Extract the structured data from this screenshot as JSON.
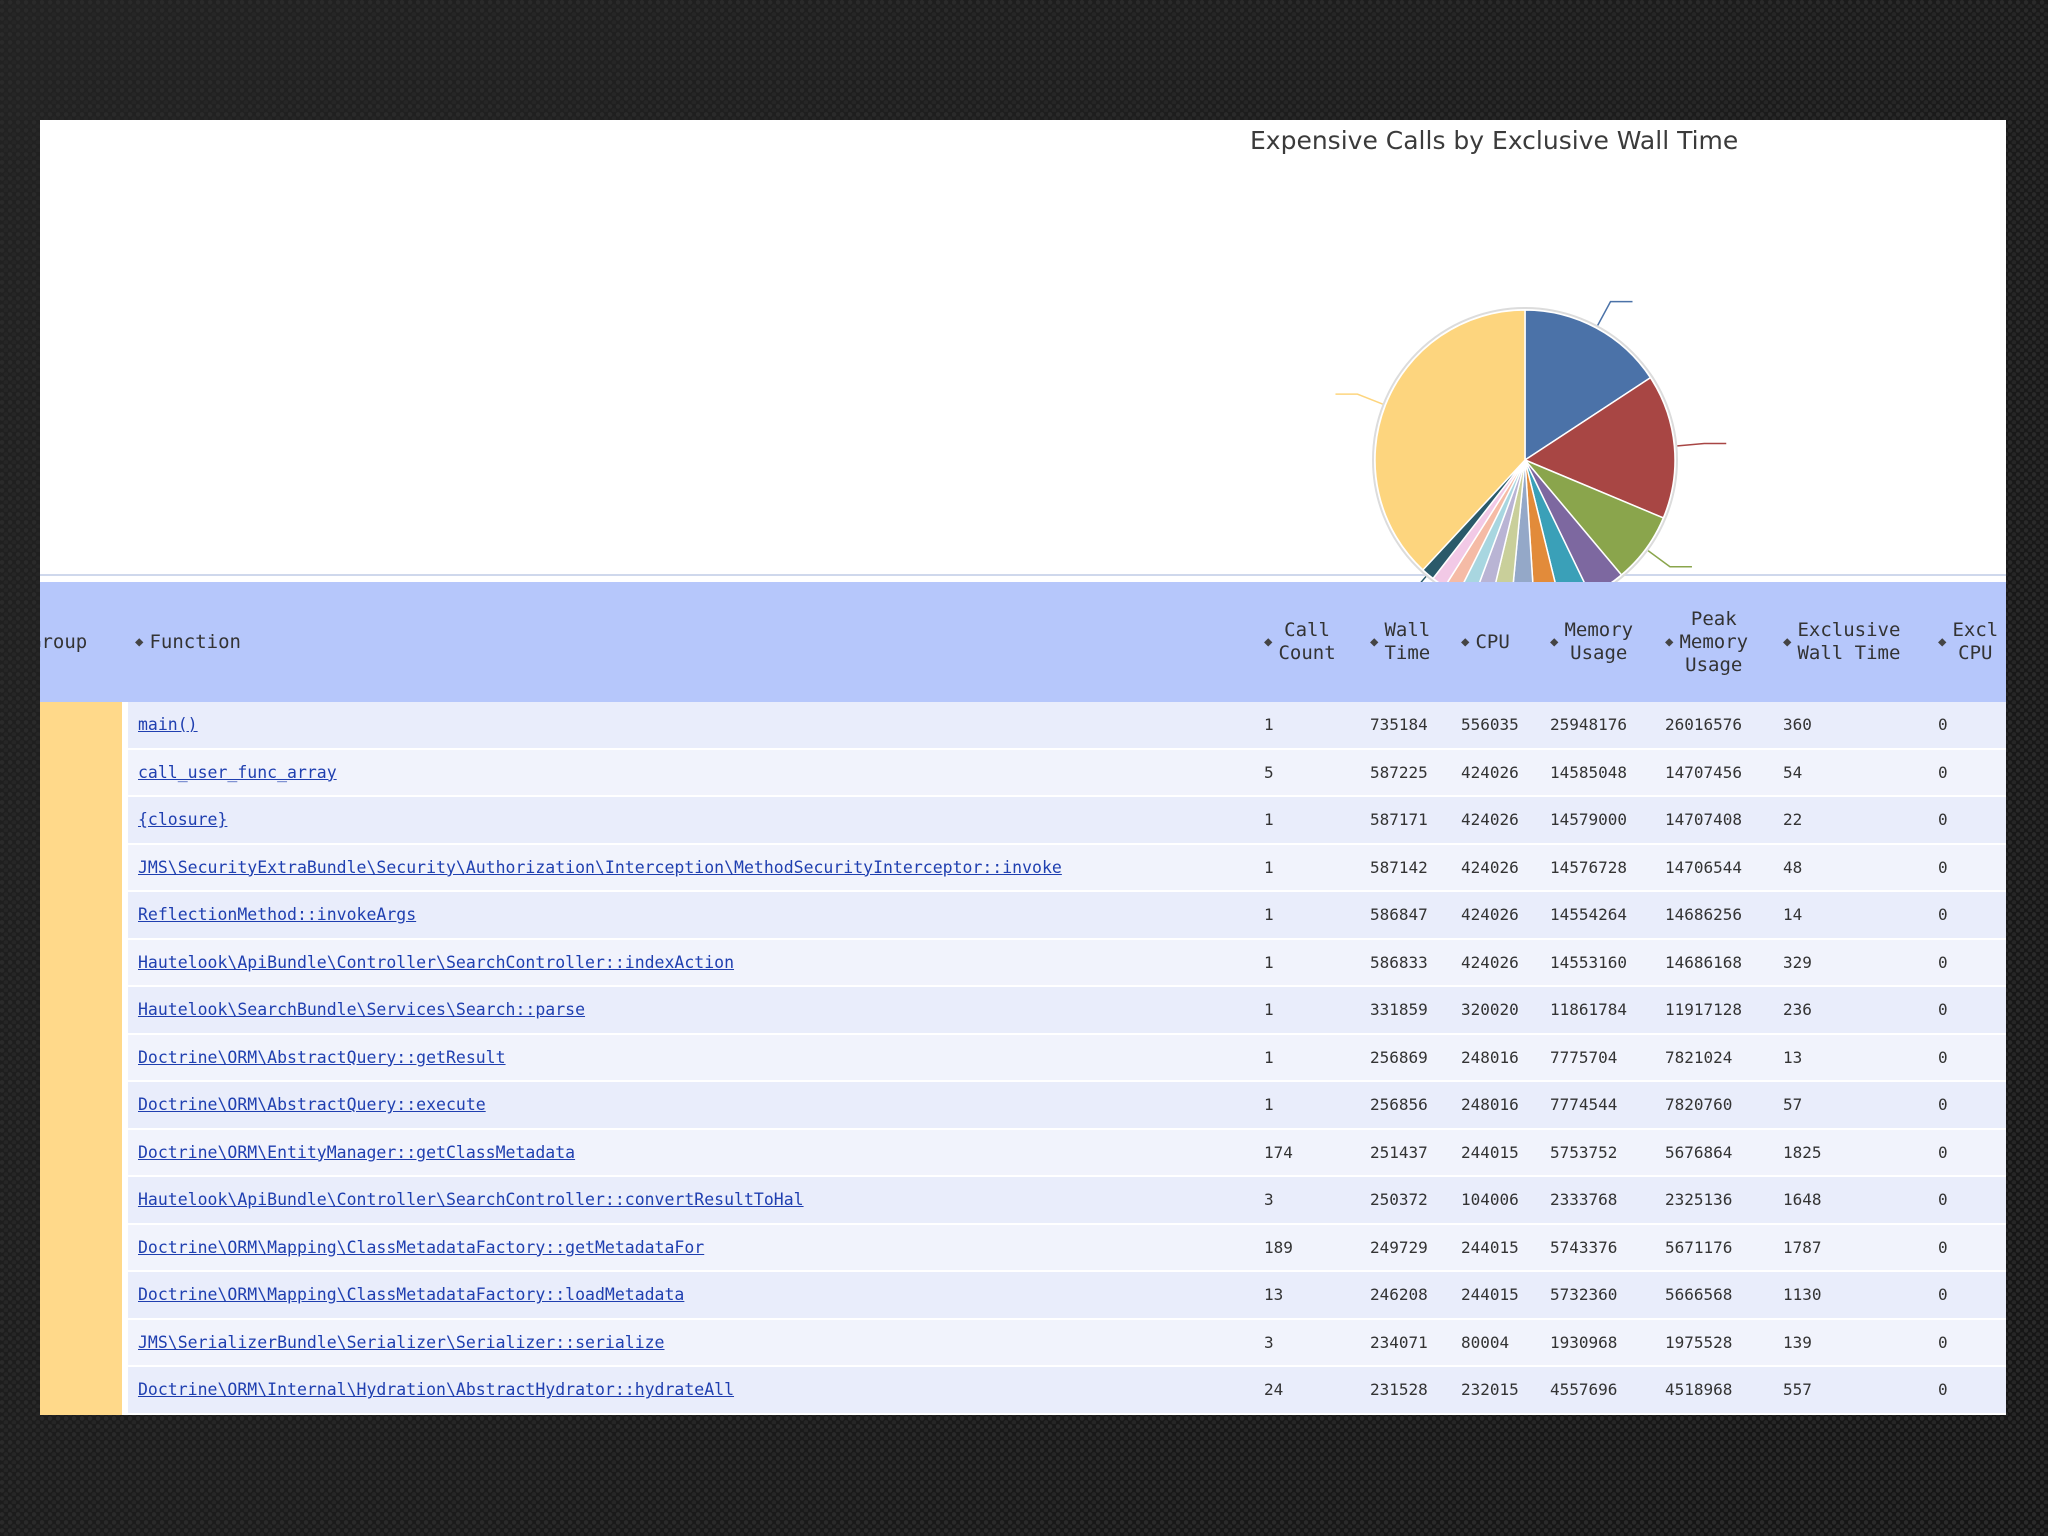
{
  "chart": {
    "title": "Expensive Calls by Exclusive Wall Time",
    "slices": [
      {
        "value": 15.6,
        "color": "#4b72a8"
      },
      {
        "value": 15.4,
        "color": "#a84644"
      },
      {
        "value": 7.5,
        "color": "#8aa54c"
      },
      {
        "value": 3.9,
        "color": "#7d68a0"
      },
      {
        "value": 3.3,
        "color": "#3aa0b8"
      },
      {
        "value": 2.8,
        "color": "#e28b3a"
      },
      {
        "value": 2.5,
        "color": "#94a8c8"
      },
      {
        "value": 2.2,
        "color": "#c9cf9a"
      },
      {
        "value": 1.9,
        "color": "#b9b4d4"
      },
      {
        "value": 1.7,
        "color": "#a8d6e0"
      },
      {
        "value": 1.6,
        "color": "#f5bba6"
      },
      {
        "value": 1.5,
        "color": "#f2c9e6"
      },
      {
        "value": 1.4,
        "color": "#2a5a6a"
      },
      {
        "value": 37.7,
        "color": "#fdd57e"
      }
    ]
  },
  "table": {
    "headers": {
      "group": "Group",
      "function": "Function",
      "call_count": "Call\nCount",
      "wall_time": "Wall\nTime",
      "cpu": "CPU",
      "memory_usage": "Memory\nUsage",
      "peak_memory_usage": "Peak\nMemory\nUsage",
      "exclusive_wall_time": "Exclusive\nWall Time",
      "exclusive_cpu": "Excl\nCPU"
    },
    "rows": [
      {
        "function": "main()",
        "call_count": "1",
        "wall_time": "735184",
        "cpu": "556035",
        "memory_usage": "25948176",
        "peak_memory_usage": "26016576",
        "exclusive_wall_time": "360",
        "exclusive_cpu": "0"
      },
      {
        "function": "call_user_func_array",
        "call_count": "5",
        "wall_time": "587225",
        "cpu": "424026",
        "memory_usage": "14585048",
        "peak_memory_usage": "14707456",
        "exclusive_wall_time": "54",
        "exclusive_cpu": "0"
      },
      {
        "function": "{closure}",
        "call_count": "1",
        "wall_time": "587171",
        "cpu": "424026",
        "memory_usage": "14579000",
        "peak_memory_usage": "14707408",
        "exclusive_wall_time": "22",
        "exclusive_cpu": "0"
      },
      {
        "function": "JMS\\SecurityExtraBundle\\Security\\Authorization\\Interception\\MethodSecurityInterceptor::invoke",
        "call_count": "1",
        "wall_time": "587142",
        "cpu": "424026",
        "memory_usage": "14576728",
        "peak_memory_usage": "14706544",
        "exclusive_wall_time": "48",
        "exclusive_cpu": "0"
      },
      {
        "function": "ReflectionMethod::invokeArgs",
        "call_count": "1",
        "wall_time": "586847",
        "cpu": "424026",
        "memory_usage": "14554264",
        "peak_memory_usage": "14686256",
        "exclusive_wall_time": "14",
        "exclusive_cpu": "0"
      },
      {
        "function": "Hautelook\\ApiBundle\\Controller\\SearchController::indexAction",
        "call_count": "1",
        "wall_time": "586833",
        "cpu": "424026",
        "memory_usage": "14553160",
        "peak_memory_usage": "14686168",
        "exclusive_wall_time": "329",
        "exclusive_cpu": "0"
      },
      {
        "function": "Hautelook\\SearchBundle\\Services\\Search::parse",
        "call_count": "1",
        "wall_time": "331859",
        "cpu": "320020",
        "memory_usage": "11861784",
        "peak_memory_usage": "11917128",
        "exclusive_wall_time": "236",
        "exclusive_cpu": "0"
      },
      {
        "function": "Doctrine\\ORM\\AbstractQuery::getResult",
        "call_count": "1",
        "wall_time": "256869",
        "cpu": "248016",
        "memory_usage": "7775704",
        "peak_memory_usage": "7821024",
        "exclusive_wall_time": "13",
        "exclusive_cpu": "0"
      },
      {
        "function": "Doctrine\\ORM\\AbstractQuery::execute",
        "call_count": "1",
        "wall_time": "256856",
        "cpu": "248016",
        "memory_usage": "7774544",
        "peak_memory_usage": "7820760",
        "exclusive_wall_time": "57",
        "exclusive_cpu": "0"
      },
      {
        "function": "Doctrine\\ORM\\EntityManager::getClassMetadata",
        "call_count": "174",
        "wall_time": "251437",
        "cpu": "244015",
        "memory_usage": "5753752",
        "peak_memory_usage": "5676864",
        "exclusive_wall_time": "1825",
        "exclusive_cpu": "0"
      },
      {
        "function": "Hautelook\\ApiBundle\\Controller\\SearchController::convertResultToHal",
        "call_count": "3",
        "wall_time": "250372",
        "cpu": "104006",
        "memory_usage": "2333768",
        "peak_memory_usage": "2325136",
        "exclusive_wall_time": "1648",
        "exclusive_cpu": "0"
      },
      {
        "function": "Doctrine\\ORM\\Mapping\\ClassMetadataFactory::getMetadataFor",
        "call_count": "189",
        "wall_time": "249729",
        "cpu": "244015",
        "memory_usage": "5743376",
        "peak_memory_usage": "5671176",
        "exclusive_wall_time": "1787",
        "exclusive_cpu": "0"
      },
      {
        "function": "Doctrine\\ORM\\Mapping\\ClassMetadataFactory::loadMetadata",
        "call_count": "13",
        "wall_time": "246208",
        "cpu": "244015",
        "memory_usage": "5732360",
        "peak_memory_usage": "5666568",
        "exclusive_wall_time": "1130",
        "exclusive_cpu": "0"
      },
      {
        "function": "JMS\\SerializerBundle\\Serializer\\Serializer::serialize",
        "call_count": "3",
        "wall_time": "234071",
        "cpu": "80004",
        "memory_usage": "1930968",
        "peak_memory_usage": "1975528",
        "exclusive_wall_time": "139",
        "exclusive_cpu": "0"
      },
      {
        "function": "Doctrine\\ORM\\Internal\\Hydration\\AbstractHydrator::hydrateAll",
        "call_count": "24",
        "wall_time": "231528",
        "cpu": "232015",
        "memory_usage": "4557696",
        "peak_memory_usage": "4518968",
        "exclusive_wall_time": "557",
        "exclusive_cpu": "0"
      }
    ]
  }
}
